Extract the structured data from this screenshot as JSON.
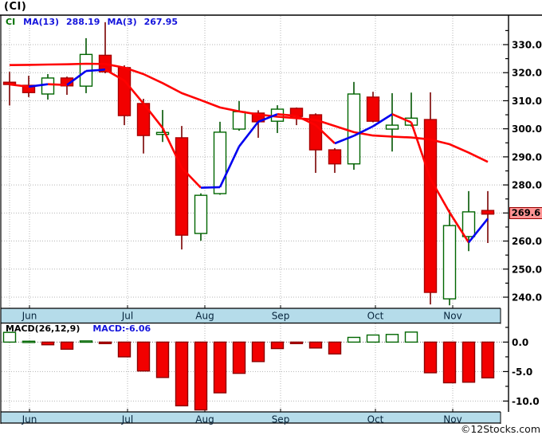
{
  "window": {
    "title": "(CI)"
  },
  "price_panel": {
    "legend": {
      "symbol": "CI",
      "ma13_label": "MA(13)",
      "ma13_value": "288.19",
      "ma3_label": "MA(3)",
      "ma3_value": "267.95"
    },
    "last_price_label": "269.6"
  },
  "macd_panel": {
    "legend": "MACD(26,12,9)",
    "value_label": "MACD:-6.06"
  },
  "watermark": "©12Stocks.com",
  "colors": {
    "up_fill": "#ffffff",
    "up_stroke": "#006600",
    "down_fill": "#f20000",
    "down_stroke": "#a80000",
    "wick_up": "#005500",
    "wick_down": "#7a0000",
    "ma13": "#ff0000",
    "ma3_up": "#0000f0",
    "ma3_down": "#ff0000",
    "band_fill": "#b5dcea",
    "band_border": "#000000",
    "band_text": "#06243c",
    "grid": "#b4b4b4",
    "grid_zero": "#707070",
    "frame": "#000000",
    "macd_pos_stroke": "#006600",
    "macd_pos_fill": "#ffffff",
    "macd_neg_fill": "#f20000",
    "macd_neg_stroke": "#8b0000",
    "axis_text": "#000000"
  },
  "chart_data": {
    "type": "candlestick+macd",
    "title": "(CI)",
    "months": [
      "Jun",
      "Jul",
      "Aug",
      "Sep",
      "Oct",
      "Nov"
    ],
    "month_label_x": [
      37,
      160,
      257,
      352,
      471,
      568
    ],
    "month_grid_x": [
      12,
      37,
      160,
      257,
      352,
      471,
      568
    ],
    "price_axis": {
      "max": 330,
      "min": 240,
      "step": 10,
      "minor_step": 5,
      "labels": [
        "330.0",
        "320.0",
        "310.0",
        "300.0",
        "290.0",
        "280.0",
        "270.0",
        "260.0",
        "250.0",
        "240.0"
      ]
    },
    "macd_axis": {
      "ticks": [
        0,
        -5,
        -10
      ],
      "labels": [
        "0.0",
        "-5.0",
        "-10.0"
      ],
      "minor_step": 2.5
    },
    "last_price": 269.6,
    "ma13_last": 288.19,
    "ma3_last": 267.95,
    "macd_last": -6.06,
    "candles": [
      [
        316.6,
        320.3,
        308.3,
        315.8
      ],
      [
        315.5,
        318.9,
        311.3,
        312.9
      ],
      [
        312.4,
        319.5,
        310.4,
        318.1
      ],
      [
        318.1,
        318.6,
        312.1,
        315.3
      ],
      [
        315.2,
        332.3,
        312.7,
        326.5
      ],
      [
        326.2,
        338.0,
        319.8,
        320.3
      ],
      [
        321.8,
        322.6,
        301.3,
        304.7
      ],
      [
        309.0,
        310.7,
        291.2,
        297.6
      ],
      [
        298.0,
        306.7,
        295.3,
        298.7
      ],
      [
        296.8,
        301.0,
        257.0,
        262.1
      ],
      [
        262.7,
        277.0,
        260.1,
        276.3
      ],
      [
        276.9,
        302.5,
        276.5,
        298.8
      ],
      [
        299.9,
        309.9,
        299.3,
        306.1
      ],
      [
        305.6,
        306.6,
        296.8,
        302.5
      ],
      [
        302.7,
        308.4,
        298.5,
        307.0
      ],
      [
        307.3,
        307.6,
        301.3,
        304.4
      ],
      [
        305.0,
        305.5,
        284.3,
        292.5
      ],
      [
        292.5,
        293.1,
        284.3,
        287.5
      ],
      [
        287.5,
        316.7,
        285.4,
        312.4
      ],
      [
        311.3,
        313.2,
        302.3,
        302.7
      ],
      [
        299.9,
        312.7,
        291.9,
        301.3
      ],
      [
        301.3,
        312.9,
        300.8,
        303.8
      ],
      [
        303.3,
        313.0,
        237.4,
        241.7
      ],
      [
        239.4,
        271.1,
        237.1,
        265.5
      ],
      [
        261.6,
        277.8,
        256.4,
        270.4
      ],
      [
        270.9,
        277.8,
        259.3,
        269.6
      ]
    ],
    "ma13": [
      322.7,
      322.8,
      322.9,
      323.0,
      323.2,
      323.1,
      321.8,
      319.5,
      316.3,
      312.7,
      310.2,
      307.6,
      306.2,
      305.1,
      304.3,
      303.8,
      303.2,
      301.0,
      298.8,
      297.6,
      297.2,
      296.9,
      296.2,
      294.5,
      291.5,
      288.2
    ],
    "ma3": [
      315.8,
      315.0,
      315.9,
      315.6,
      320.6,
      321.1,
      317.2,
      309.0,
      300.3,
      286.1,
      279.0,
      279.2,
      293.7,
      302.5,
      305.2,
      304.6,
      301.3,
      294.8,
      297.5,
      300.9,
      305.2,
      302.3,
      282.2,
      270.2,
      259.5,
      268.0
    ],
    "macd": [
      1.65,
      0.15,
      -0.45,
      -1.2,
      0.2,
      -0.25,
      -2.5,
      -4.9,
      -6.0,
      -10.8,
      -11.5,
      -8.6,
      -5.3,
      -3.3,
      -1.1,
      -0.25,
      -1.0,
      -2.0,
      0.8,
      1.2,
      1.3,
      1.7,
      -5.2,
      -6.9,
      -6.8,
      -6.06
    ]
  }
}
